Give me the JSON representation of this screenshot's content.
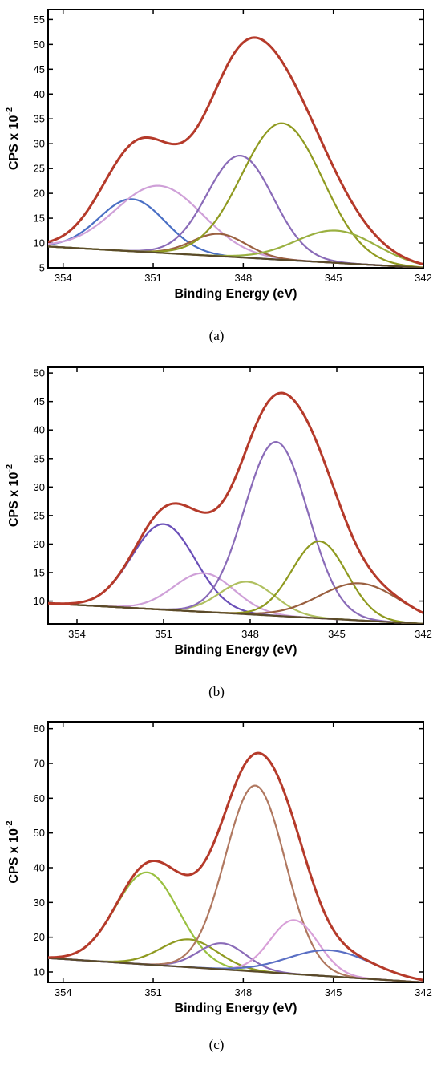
{
  "figure": {
    "panels": [
      "(a)",
      "(b)",
      "(c)"
    ]
  },
  "chart_data": [
    {
      "type": "line",
      "panel_label": "(a)",
      "xlabel": "Binding Energy (eV)",
      "ylabel": "CPS x 10",
      "ylabel_exponent": "-2",
      "xlim": [
        354.5,
        342
      ],
      "ylim": [
        5,
        57
      ],
      "x_ticks": [
        354,
        351,
        348,
        345,
        342
      ],
      "y_ticks": [
        5,
        10,
        15,
        20,
        25,
        30,
        35,
        40,
        45,
        50,
        55
      ],
      "background": {
        "type": "linear",
        "points": [
          [
            354.5,
            9.3
          ],
          [
            342,
            5.0
          ]
        ]
      },
      "components": [
        {
          "center": 351.7,
          "height": 10.5,
          "width": 1.1,
          "color": "#4a6fc4"
        },
        {
          "center": 350.8,
          "height": 13.5,
          "width": 1.45,
          "color": "#cfa0d8"
        },
        {
          "center": 348.8,
          "height": 4.5,
          "width": 0.9,
          "color": "#9a6040"
        },
        {
          "center": 348.1,
          "height": 20.5,
          "width": 1.1,
          "color": "#8a6bb8"
        },
        {
          "center": 346.7,
          "height": 27.5,
          "width": 1.35,
          "color": "#8f9a20"
        },
        {
          "center": 344.9,
          "height": 6.5,
          "width": 1.35,
          "color": "#9ab040"
        }
      ],
      "envelope_color": "#b53a2a"
    },
    {
      "type": "line",
      "panel_label": "(b)",
      "xlabel": "Binding Energy (eV)",
      "ylabel": "CPS x 10",
      "ylabel_exponent": "-2",
      "xlim": [
        355,
        342
      ],
      "ylim": [
        6,
        51
      ],
      "x_ticks": [
        354,
        351,
        348,
        345,
        342
      ],
      "y_ticks": [
        10,
        15,
        20,
        25,
        30,
        35,
        40,
        45,
        50
      ],
      "background": {
        "type": "linear",
        "points": [
          [
            355,
            9.6
          ],
          [
            342,
            6.0
          ]
        ]
      },
      "components": [
        {
          "center": 351.0,
          "height": 15.0,
          "width": 1.1,
          "color": "#6a4fb8"
        },
        {
          "center": 349.6,
          "height": 6.8,
          "width": 1.05,
          "color": "#cfa0d8"
        },
        {
          "center": 348.1,
          "height": 5.7,
          "width": 0.95,
          "color": "#b0c060"
        },
        {
          "center": 347.1,
          "height": 30.5,
          "width": 1.1,
          "color": "#8a6bb8"
        },
        {
          "center": 345.6,
          "height": 13.5,
          "width": 0.95,
          "color": "#8f9a20"
        },
        {
          "center": 344.2,
          "height": 6.5,
          "width": 1.4,
          "color": "#9a6040"
        }
      ],
      "envelope_color": "#b53a2a"
    },
    {
      "type": "line",
      "panel_label": "(c)",
      "xlabel": "Binding Energy (eV)",
      "ylabel": "CPS x 10",
      "ylabel_exponent": "-2",
      "xlim": [
        354.5,
        342
      ],
      "ylim": [
        7,
        82
      ],
      "x_ticks": [
        354,
        351,
        348,
        345,
        342
      ],
      "y_ticks": [
        10,
        20,
        30,
        40,
        50,
        60,
        70,
        80
      ],
      "background": {
        "type": "linear",
        "points": [
          [
            354.5,
            14.0
          ],
          [
            342,
            7.0
          ]
        ]
      },
      "components": [
        {
          "center": 351.2,
          "height": 26.5,
          "width": 1.05,
          "color": "#9ac040"
        },
        {
          "center": 349.8,
          "height": 8.0,
          "width": 0.95,
          "color": "#8f9a20"
        },
        {
          "center": 348.7,
          "height": 7.5,
          "width": 0.8,
          "color": "#8a6bb8"
        },
        {
          "center": 347.6,
          "height": 53.5,
          "width": 1.0,
          "color": "#b07860"
        },
        {
          "center": 346.3,
          "height": 15.5,
          "width": 0.8,
          "color": "#d8a0d8"
        },
        {
          "center": 345.1,
          "height": 7.5,
          "width": 1.4,
          "color": "#5a6fc4"
        }
      ],
      "envelope_color": "#b53a2a"
    }
  ]
}
